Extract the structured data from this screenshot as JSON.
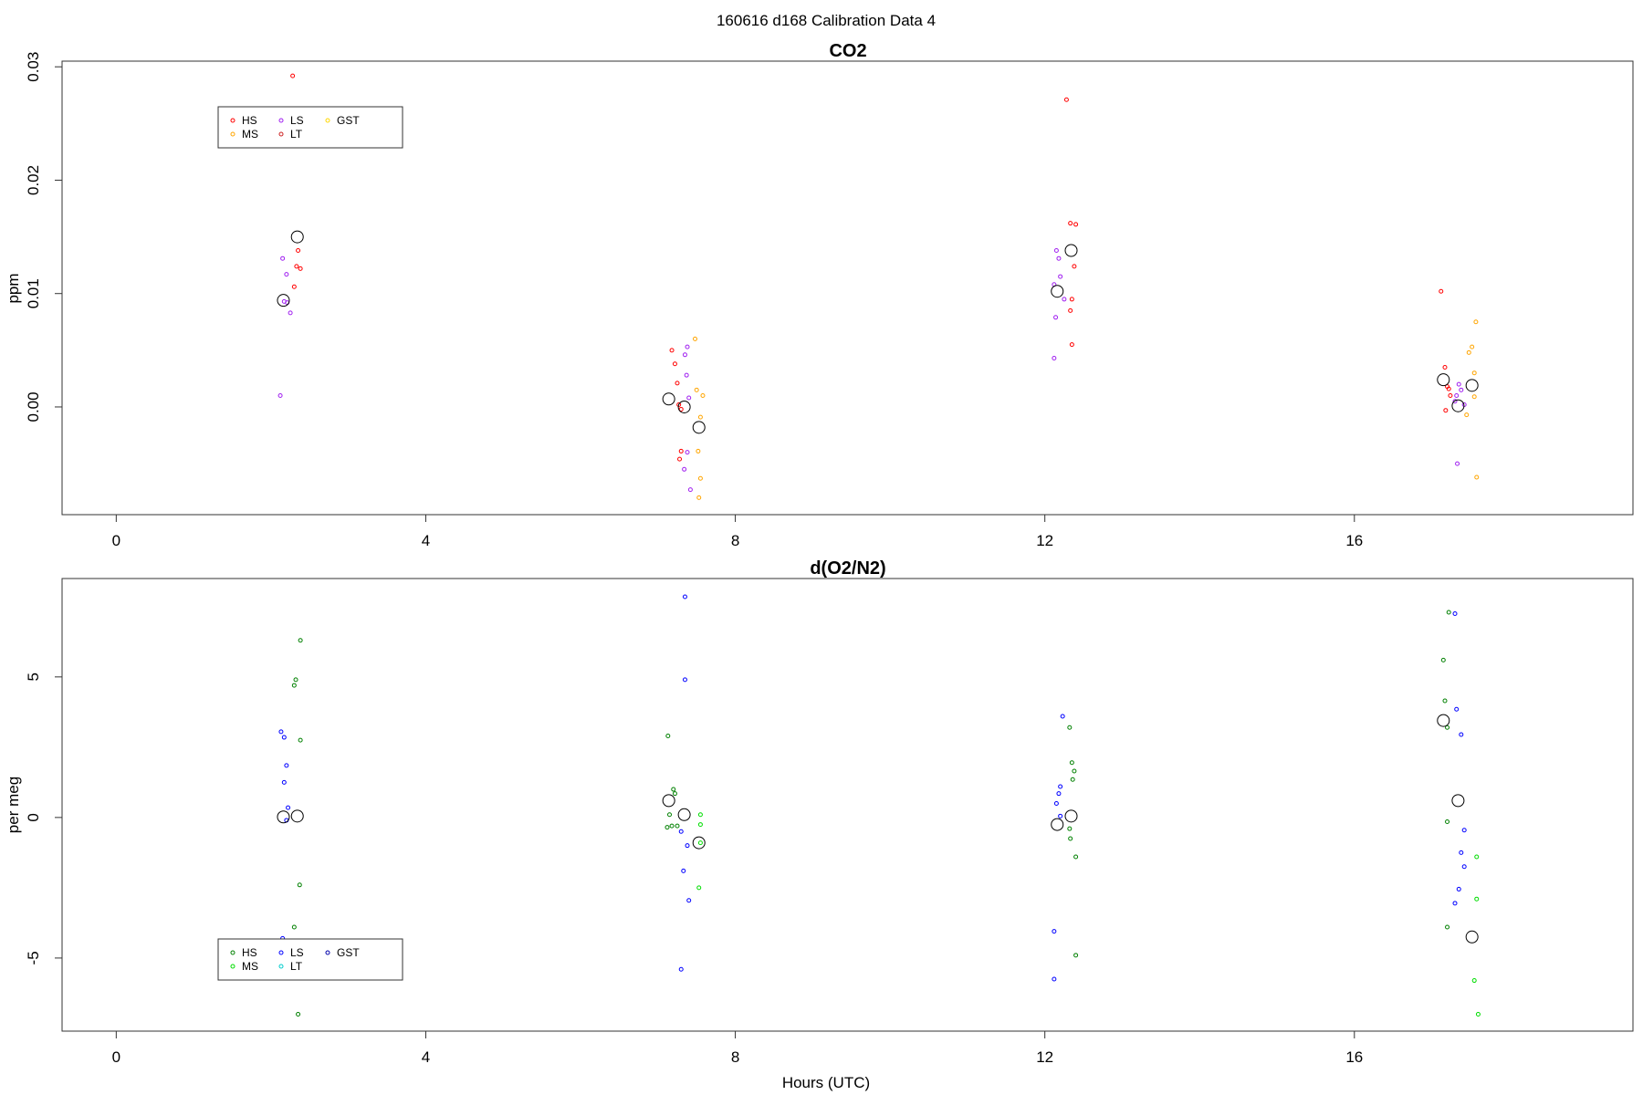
{
  "figure": {
    "title": "160616   d168   Calibration Data 4",
    "xlabel": "Hours (UTC)"
  },
  "colors": {
    "HS_co2": "#ff0000",
    "MS_co2": "#ffa500",
    "LS_co2": "#a020f0",
    "LT_co2": "#cc2020",
    "GST_co2": "#ffd700",
    "HS_o2": "#008000",
    "MS_o2": "#00dd00",
    "LS_o2": "#0000ff",
    "LT_o2": "#00cccc",
    "GST_o2": "#0000aa",
    "mean": "#000000"
  },
  "chart_data": [
    {
      "type": "scatter",
      "title": "CO2",
      "ylabel": "ppm",
      "xlim": [
        -0.7,
        19.6
      ],
      "ylim": [
        -0.0095,
        0.0305
      ],
      "xticks": [
        0,
        4,
        8,
        12,
        16
      ],
      "yticks": [
        0,
        0.01,
        0.02,
        0.03
      ],
      "ytick_labels": [
        "0.00",
        "0.01",
        "0.02",
        "0.03"
      ],
      "legend": {
        "placement": "top-left",
        "entries": [
          "HS",
          "MS",
          "LS",
          "LT",
          "GST"
        ]
      },
      "series": [
        {
          "name": "HS",
          "color_key": "HS_co2",
          "points": [
            [
              2.28,
              0.0292
            ],
            [
              2.35,
              0.0138
            ],
            [
              2.33,
              0.0124
            ],
            [
              2.38,
              0.0122
            ],
            [
              2.3,
              0.0106
            ],
            [
              7.18,
              0.005
            ],
            [
              7.22,
              0.0038
            ],
            [
              7.25,
              0.0021
            ],
            [
              7.27,
              0.0002
            ],
            [
              7.3,
              -0.0002
            ],
            [
              7.3,
              -0.0039
            ],
            [
              7.28,
              -0.0046
            ],
            [
              12.28,
              0.0271
            ],
            [
              12.33,
              0.0162
            ],
            [
              12.4,
              0.0161
            ],
            [
              12.38,
              0.0124
            ],
            [
              12.35,
              0.0095
            ],
            [
              12.33,
              0.0085
            ],
            [
              12.35,
              0.0055
            ],
            [
              17.12,
              0.0102
            ],
            [
              17.17,
              0.0035
            ],
            [
              17.2,
              0.0018
            ],
            [
              17.22,
              0.0016
            ],
            [
              17.24,
              0.001
            ],
            [
              17.18,
              -0.0003
            ]
          ]
        },
        {
          "name": "MS",
          "color_key": "MS_co2",
          "points": [
            [
              7.48,
              0.006
            ],
            [
              7.5,
              0.0015
            ],
            [
              7.58,
              0.001
            ],
            [
              7.55,
              -0.0009
            ],
            [
              7.52,
              -0.0039
            ],
            [
              7.55,
              -0.0063
            ],
            [
              7.53,
              -0.008
            ],
            [
              17.48,
              0.0048
            ],
            [
              17.52,
              0.0053
            ],
            [
              17.57,
              0.0075
            ],
            [
              17.55,
              0.003
            ],
            [
              17.55,
              0.0009
            ],
            [
              17.45,
              -0.0007
            ],
            [
              17.58,
              -0.0062
            ]
          ]
        },
        {
          "name": "LS",
          "color_key": "LS_co2",
          "points": [
            [
              2.15,
              0.0131
            ],
            [
              2.2,
              0.0117
            ],
            [
              2.17,
              0.0093
            ],
            [
              2.21,
              0.0092
            ],
            [
              2.25,
              0.0083
            ],
            [
              2.12,
              0.001
            ],
            [
              7.38,
              0.0053
            ],
            [
              7.35,
              0.0046
            ],
            [
              7.37,
              0.0028
            ],
            [
              7.4,
              0.0008
            ],
            [
              7.38,
              -0.004
            ],
            [
              7.34,
              -0.0055
            ],
            [
              7.42,
              -0.0073
            ],
            [
              12.15,
              0.0138
            ],
            [
              12.18,
              0.0131
            ],
            [
              12.2,
              0.0115
            ],
            [
              12.12,
              0.0108
            ],
            [
              12.25,
              0.0095
            ],
            [
              12.14,
              0.0079
            ],
            [
              12.12,
              0.0043
            ],
            [
              17.35,
              0.002
            ],
            [
              17.38,
              0.0015
            ],
            [
              17.32,
              0.001
            ],
            [
              17.3,
              0.0005
            ],
            [
              17.42,
              0.0002
            ],
            [
              17.33,
              -0.005
            ]
          ]
        },
        {
          "name": "LT",
          "color_key": "LT_co2",
          "points": []
        },
        {
          "name": "GST",
          "color_key": "GST_co2",
          "points": []
        },
        {
          "name": "",
          "color_key": "mean",
          "large": true,
          "points": [
            [
              2.16,
              0.0094
            ],
            [
              2.34,
              0.015
            ],
            [
              7.14,
              0.0007
            ],
            [
              7.34,
              0.0
            ],
            [
              7.53,
              -0.0018
            ],
            [
              12.16,
              0.0102
            ],
            [
              12.34,
              0.0138
            ],
            [
              17.15,
              0.0024
            ],
            [
              17.34,
              0.0001
            ],
            [
              17.52,
              0.0019
            ]
          ]
        }
      ]
    },
    {
      "type": "scatter",
      "title": "d(O2/N2)",
      "ylabel": "per meg",
      "xlim": [
        -0.7,
        19.6
      ],
      "ylim": [
        -7.6,
        8.5
      ],
      "xticks": [
        0,
        4,
        8,
        12,
        16
      ],
      "yticks": [
        -5,
        0,
        5
      ],
      "ytick_labels": [
        "-5",
        "0",
        "5"
      ],
      "legend": {
        "placement": "bottom-left",
        "entries": [
          "HS",
          "MS",
          "LS",
          "LT",
          "GST"
        ]
      },
      "series": [
        {
          "name": "HS",
          "color_key": "HS_o2",
          "points": [
            [
              2.38,
              6.3
            ],
            [
              2.32,
              4.9
            ],
            [
              2.3,
              4.7
            ],
            [
              2.38,
              2.75
            ],
            [
              2.37,
              -2.4
            ],
            [
              2.3,
              -3.9
            ],
            [
              2.35,
              -7.0
            ],
            [
              7.13,
              2.9
            ],
            [
              7.2,
              1.0
            ],
            [
              7.22,
              0.85
            ],
            [
              7.15,
              0.1
            ],
            [
              7.18,
              -0.3
            ],
            [
              7.25,
              -0.3
            ],
            [
              7.12,
              -0.35
            ],
            [
              12.32,
              3.2
            ],
            [
              12.35,
              1.95
            ],
            [
              12.38,
              1.65
            ],
            [
              12.36,
              1.35
            ],
            [
              12.32,
              -0.4
            ],
            [
              12.33,
              -0.75
            ],
            [
              12.4,
              -1.4
            ],
            [
              12.4,
              -4.9
            ],
            [
              17.17,
              4.15
            ],
            [
              17.2,
              3.2
            ],
            [
              17.2,
              -0.15
            ],
            [
              17.2,
              -3.9
            ],
            [
              17.22,
              7.3
            ],
            [
              17.15,
              5.6
            ]
          ]
        },
        {
          "name": "MS",
          "color_key": "MS_o2",
          "points": [
            [
              7.55,
              0.1
            ],
            [
              7.55,
              -0.25
            ],
            [
              7.55,
              -0.9
            ],
            [
              7.53,
              -2.5
            ],
            [
              17.58,
              -1.4
            ],
            [
              17.58,
              -2.9
            ],
            [
              17.55,
              -5.8
            ],
            [
              17.6,
              -7.0
            ]
          ]
        },
        {
          "name": "LS",
          "color_key": "LS_o2",
          "points": [
            [
              2.13,
              3.05
            ],
            [
              2.17,
              2.85
            ],
            [
              2.2,
              1.85
            ],
            [
              2.17,
              1.25
            ],
            [
              2.22,
              0.35
            ],
            [
              2.2,
              -0.1
            ],
            [
              2.15,
              -4.3
            ],
            [
              7.35,
              7.85
            ],
            [
              7.35,
              4.9
            ],
            [
              7.3,
              -0.5
            ],
            [
              7.38,
              -1.0
            ],
            [
              7.33,
              -1.9
            ],
            [
              7.4,
              -2.95
            ],
            [
              7.3,
              -5.4
            ],
            [
              12.23,
              3.6
            ],
            [
              12.2,
              1.1
            ],
            [
              12.18,
              0.85
            ],
            [
              12.15,
              0.5
            ],
            [
              12.2,
              0.05
            ],
            [
              12.12,
              -4.05
            ],
            [
              12.12,
              -5.75
            ],
            [
              17.3,
              7.25
            ],
            [
              17.32,
              3.85
            ],
            [
              17.38,
              2.95
            ],
            [
              17.42,
              -0.45
            ],
            [
              17.38,
              -1.25
            ],
            [
              17.42,
              -1.75
            ],
            [
              17.35,
              -2.55
            ],
            [
              17.3,
              -3.05
            ]
          ]
        },
        {
          "name": "LT",
          "color_key": "LT_o2",
          "points": []
        },
        {
          "name": "GST",
          "color_key": "GST_o2",
          "points": []
        },
        {
          "name": "",
          "color_key": "mean",
          "large": true,
          "points": [
            [
              2.16,
              0.02
            ],
            [
              2.34,
              0.05
            ],
            [
              7.14,
              0.6
            ],
            [
              7.34,
              0.1
            ],
            [
              7.53,
              -0.9
            ],
            [
              12.16,
              -0.25
            ],
            [
              12.34,
              0.05
            ],
            [
              17.15,
              3.45
            ],
            [
              17.34,
              0.6
            ],
            [
              17.52,
              -4.25
            ]
          ]
        }
      ]
    }
  ]
}
